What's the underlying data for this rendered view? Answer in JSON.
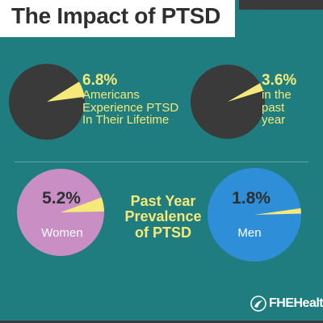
{
  "header": {
    "title": "The Impact of PTSD"
  },
  "stats": {
    "lifetime_pct": "6.8%",
    "lifetime_desc": [
      "Americans",
      "Experience PTSD",
      "In Their Lifetime"
    ],
    "past_year_pct": "3.6%",
    "past_year_desc": [
      "in the",
      "past",
      "year"
    ]
  },
  "center_label": [
    "Past Year",
    "Prevalence",
    "of PTSD"
  ],
  "women": {
    "pct": "5.2%",
    "label": "Women"
  },
  "men": {
    "pct": "1.8%",
    "label": "Men"
  },
  "brand": {
    "name": "FHEHealth",
    "icon": "fhe-logo-icon"
  },
  "colors": {
    "background": "#1f7d7f",
    "dark_pie": "#3a3a3a",
    "highlight": "#f5e97a",
    "women_pie": "#c98fc4",
    "men_pie": "#2f8ed8"
  },
  "chart_data": [
    {
      "type": "pie",
      "categories": [
        "Americans Experience PTSD In Their Lifetime",
        "Other"
      ],
      "values": [
        6.8,
        93.2
      ],
      "title": ""
    },
    {
      "type": "pie",
      "categories": [
        "in the past year",
        "Other"
      ],
      "values": [
        3.6,
        96.4
      ],
      "title": ""
    },
    {
      "type": "pie",
      "categories": [
        "Women",
        "Other"
      ],
      "values": [
        5.2,
        94.8
      ],
      "title": "Past Year Prevalence of PTSD"
    },
    {
      "type": "pie",
      "categories": [
        "Men",
        "Other"
      ],
      "values": [
        1.8,
        98.2
      ],
      "title": "Past Year Prevalence of PTSD"
    }
  ]
}
